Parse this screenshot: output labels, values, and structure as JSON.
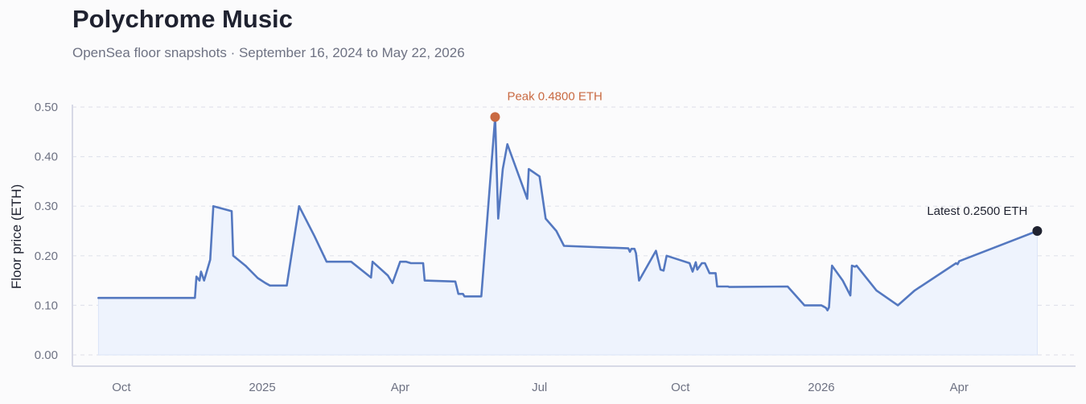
{
  "header": {
    "title": "Polychrome Music",
    "subtitle": "OpenSea floor snapshots · September 16, 2024 to May 22, 2026"
  },
  "colors": {
    "line": "#5478c0",
    "fill": "#eef3fd",
    "peak": "#c96a42",
    "latest": "#1f2230",
    "grid": "#e2e4ec",
    "axis": "#d7d9e6"
  },
  "chart_data": {
    "type": "line",
    "title": "Polychrome Music",
    "ylabel": "Floor price (ETH)",
    "ylim": [
      0,
      0.5
    ],
    "y_ticks": [
      "0.00",
      "0.10",
      "0.20",
      "0.30",
      "0.40",
      "0.50"
    ],
    "y_tick_values": [
      0,
      0.1,
      0.2,
      0.3,
      0.4,
      0.5
    ],
    "x_range": [
      "2024-08-30",
      "2026-06-16"
    ],
    "x_ticks": [
      {
        "label": "Oct",
        "date": "2024-10-01"
      },
      {
        "label": "2025",
        "date": "2025-01-01"
      },
      {
        "label": "Apr",
        "date": "2025-04-01"
      },
      {
        "label": "Jul",
        "date": "2025-07-01"
      },
      {
        "label": "Oct",
        "date": "2025-10-01"
      },
      {
        "label": "2026",
        "date": "2026-01-01"
      },
      {
        "label": "Apr",
        "date": "2026-04-01"
      }
    ],
    "grid": true,
    "series": [
      {
        "points": [
          [
            "2024-09-16",
            0.115
          ],
          [
            "2024-11-18",
            0.115
          ],
          [
            "2024-11-19",
            0.158
          ],
          [
            "2024-11-21",
            0.15
          ],
          [
            "2024-11-22",
            0.168
          ],
          [
            "2024-11-24",
            0.15
          ],
          [
            "2024-11-28",
            0.192
          ],
          [
            "2024-11-30",
            0.3
          ],
          [
            "2024-12-12",
            0.29
          ],
          [
            "2024-12-13",
            0.2
          ],
          [
            "2024-12-21",
            0.18
          ],
          [
            "2024-12-29",
            0.155
          ],
          [
            "2025-01-03",
            0.145
          ],
          [
            "2025-01-06",
            0.14
          ],
          [
            "2025-01-17",
            0.14
          ],
          [
            "2025-01-25",
            0.3
          ],
          [
            "2025-02-04",
            0.24
          ],
          [
            "2025-02-12",
            0.188
          ],
          [
            "2025-02-28",
            0.188
          ],
          [
            "2025-03-13",
            0.156
          ],
          [
            "2025-03-14",
            0.188
          ],
          [
            "2025-03-24",
            0.16
          ],
          [
            "2025-03-27",
            0.145
          ],
          [
            "2025-04-01",
            0.188
          ],
          [
            "2025-04-05",
            0.188
          ],
          [
            "2025-04-08",
            0.185
          ],
          [
            "2025-04-16",
            0.185
          ],
          [
            "2025-04-17",
            0.15
          ],
          [
            "2025-05-07",
            0.148
          ],
          [
            "2025-05-09",
            0.123
          ],
          [
            "2025-05-12",
            0.123
          ],
          [
            "2025-05-13",
            0.118
          ],
          [
            "2025-05-24",
            0.118
          ],
          [
            "2025-06-02",
            0.48
          ],
          [
            "2025-06-04",
            0.275
          ],
          [
            "2025-06-07",
            0.375
          ],
          [
            "2025-06-10",
            0.425
          ],
          [
            "2025-06-23",
            0.315
          ],
          [
            "2025-06-24",
            0.375
          ],
          [
            "2025-07-01",
            0.36
          ],
          [
            "2025-07-05",
            0.275
          ],
          [
            "2025-07-12",
            0.25
          ],
          [
            "2025-07-17",
            0.22
          ],
          [
            "2025-08-28",
            0.215
          ],
          [
            "2025-08-29",
            0.208
          ],
          [
            "2025-08-30",
            0.214
          ],
          [
            "2025-09-01",
            0.214
          ],
          [
            "2025-09-02",
            0.205
          ],
          [
            "2025-09-04",
            0.15
          ],
          [
            "2025-09-15",
            0.21
          ],
          [
            "2025-09-18",
            0.172
          ],
          [
            "2025-09-20",
            0.17
          ],
          [
            "2025-09-22",
            0.2
          ],
          [
            "2025-09-30",
            0.192
          ],
          [
            "2025-10-07",
            0.185
          ],
          [
            "2025-10-09",
            0.168
          ],
          [
            "2025-10-11",
            0.187
          ],
          [
            "2025-10-12",
            0.172
          ],
          [
            "2025-10-15",
            0.185
          ],
          [
            "2025-10-17",
            0.185
          ],
          [
            "2025-10-20",
            0.165
          ],
          [
            "2025-10-24",
            0.165
          ],
          [
            "2025-10-25",
            0.138
          ],
          [
            "2025-11-01",
            0.138
          ],
          [
            "2025-11-02",
            0.137
          ],
          [
            "2025-12-10",
            0.138
          ],
          [
            "2025-12-21",
            0.1
          ],
          [
            "2026-01-01",
            0.1
          ],
          [
            "2026-01-04",
            0.095
          ],
          [
            "2026-01-05",
            0.09
          ],
          [
            "2026-01-06",
            0.096
          ],
          [
            "2026-01-07",
            0.14
          ],
          [
            "2026-01-08",
            0.18
          ],
          [
            "2026-01-15",
            0.15
          ],
          [
            "2026-01-20",
            0.12
          ],
          [
            "2026-01-21",
            0.18
          ],
          [
            "2026-01-23",
            0.178
          ],
          [
            "2026-01-24",
            0.18
          ],
          [
            "2026-02-06",
            0.13
          ],
          [
            "2026-02-20",
            0.1
          ],
          [
            "2026-03-03",
            0.13
          ],
          [
            "2026-03-30",
            0.185
          ],
          [
            "2026-03-31",
            0.183
          ],
          [
            "2026-04-01",
            0.189
          ],
          [
            "2026-05-22",
            0.25
          ]
        ]
      }
    ],
    "annotations": {
      "peak": {
        "date": "2025-06-02",
        "value": 0.48,
        "label": "Peak 0.4800 ETH"
      },
      "latest": {
        "date": "2026-05-22",
        "value": 0.25,
        "label": "Latest 0.2500 ETH"
      }
    }
  }
}
